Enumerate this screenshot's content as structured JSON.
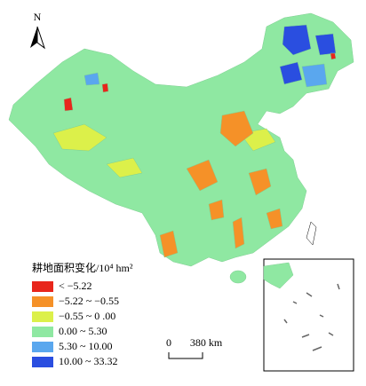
{
  "north_label": "N",
  "legend": {
    "title": "耕地面积变化/10⁴ hm²",
    "items": [
      {
        "label": "< −5.22",
        "color": "#e8261c"
      },
      {
        "label": "−5.22 ~ −0.55",
        "color": "#f59128"
      },
      {
        "label": "−0.55 ~ 0 .00",
        "color": "#dcf04a"
      },
      {
        "label": "0.00 ~ 5.30",
        "color": "#8fe8a2"
      },
      {
        "label": "5.30 ~ 10.00",
        "color": "#5aa7ee"
      },
      {
        "label": "10.00 ~ 33.32",
        "color": "#2a4ee0"
      }
    ]
  },
  "scale_bar": {
    "start": "0",
    "end": "380 km"
  }
}
